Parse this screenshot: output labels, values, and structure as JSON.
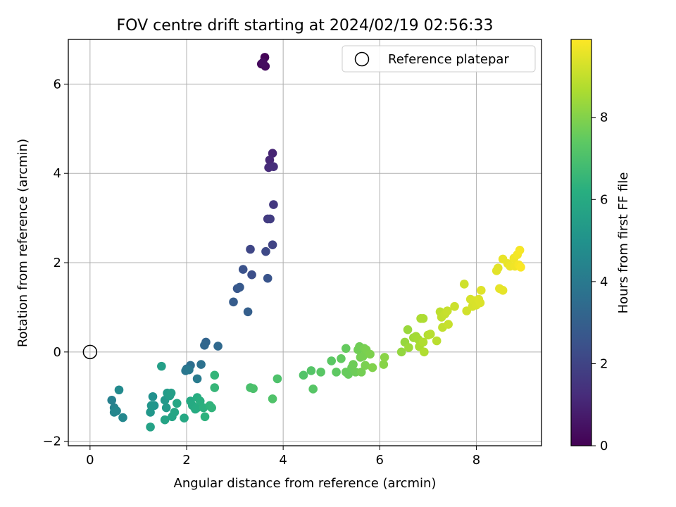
{
  "chart_data": {
    "type": "scatter",
    "title": "FOV centre drift starting at 2024/02/19 02:56:33",
    "xlabel": "Angular distance from reference (arcmin)",
    "ylabel": "Rotation from reference (arcmin)",
    "xlim": [
      -0.45,
      9.35
    ],
    "ylim": [
      -2.1,
      7.0
    ],
    "xticks": [
      0,
      2,
      4,
      6,
      8
    ],
    "yticks": [
      -2,
      0,
      2,
      4,
      6
    ],
    "grid": true,
    "legend": {
      "placement": "top-right",
      "entries": [
        "Reference platepar"
      ]
    },
    "reference_point": {
      "x": 0,
      "y": 0,
      "label": "Reference platepar"
    },
    "colorbar": {
      "label": "Hours from first FF file",
      "range": [
        0,
        9.9
      ],
      "ticks": [
        0,
        2,
        4,
        6,
        8
      ],
      "colormap": "viridis"
    },
    "points": [
      [
        3.62,
        6.6,
        0.1
      ],
      [
        3.55,
        6.45,
        0.2
      ],
      [
        3.63,
        6.4,
        0.3
      ],
      [
        3.58,
        6.48,
        0.35
      ],
      [
        3.78,
        4.45,
        1.0
      ],
      [
        3.72,
        4.3,
        1.1
      ],
      [
        3.7,
        4.13,
        1.2
      ],
      [
        3.8,
        4.15,
        1.3
      ],
      [
        3.8,
        3.3,
        1.6
      ],
      [
        3.68,
        2.98,
        1.7
      ],
      [
        3.73,
        2.98,
        1.8
      ],
      [
        3.78,
        2.4,
        2.0
      ],
      [
        3.32,
        2.3,
        2.1
      ],
      [
        3.64,
        2.25,
        2.2
      ],
      [
        3.35,
        1.73,
        2.4
      ],
      [
        3.17,
        1.85,
        2.5
      ],
      [
        3.68,
        1.65,
        2.6
      ],
      [
        3.05,
        1.42,
        2.7
      ],
      [
        3.1,
        1.45,
        2.8
      ],
      [
        2.97,
        1.12,
        2.9
      ],
      [
        3.27,
        0.9,
        3.0
      ],
      [
        2.4,
        0.22,
        3.2
      ],
      [
        2.37,
        0.15,
        3.3
      ],
      [
        2.65,
        0.13,
        3.4
      ],
      [
        2.08,
        -0.3,
        3.6
      ],
      [
        2.3,
        -0.28,
        3.7
      ],
      [
        2.0,
        -0.38,
        3.8
      ],
      [
        1.98,
        -0.42,
        3.9
      ],
      [
        2.05,
        -0.4,
        4.0
      ],
      [
        2.22,
        -0.6,
        4.1
      ],
      [
        0.45,
        -1.08,
        4.3
      ],
      [
        0.5,
        -1.25,
        4.4
      ],
      [
        0.55,
        -1.32,
        4.5
      ],
      [
        0.5,
        -1.35,
        4.55
      ],
      [
        0.68,
        -1.47,
        4.6
      ],
      [
        0.6,
        -0.85,
        4.7
      ],
      [
        1.3,
        -1.0,
        5.0
      ],
      [
        1.33,
        -1.2,
        5.1
      ],
      [
        1.27,
        -1.2,
        5.2
      ],
      [
        1.25,
        -1.35,
        5.25
      ],
      [
        1.55,
        -1.08,
        5.3
      ],
      [
        1.58,
        -1.25,
        5.35
      ],
      [
        1.6,
        -0.92,
        5.4
      ],
      [
        1.62,
        -0.95,
        5.45
      ],
      [
        1.65,
        -0.98,
        5.5
      ],
      [
        1.68,
        -0.92,
        5.55
      ],
      [
        1.48,
        -0.32,
        5.6
      ],
      [
        1.25,
        -1.68,
        5.7
      ],
      [
        1.55,
        -1.52,
        5.75
      ],
      [
        1.7,
        -1.45,
        5.8
      ],
      [
        1.75,
        -1.35,
        5.85
      ],
      [
        1.8,
        -1.15,
        5.9
      ],
      [
        1.95,
        -1.48,
        5.95
      ],
      [
        2.08,
        -1.1,
        6.0
      ],
      [
        2.12,
        -1.2,
        6.05
      ],
      [
        2.18,
        -1.28,
        6.1
      ],
      [
        2.22,
        -1.25,
        6.15
      ],
      [
        2.22,
        -1.02,
        6.2
      ],
      [
        2.28,
        -1.1,
        6.25
      ],
      [
        2.35,
        -1.25,
        6.3
      ],
      [
        2.38,
        -1.45,
        6.35
      ],
      [
        2.48,
        -1.2,
        6.4
      ],
      [
        2.52,
        -1.25,
        6.45
      ],
      [
        2.58,
        -0.52,
        6.5
      ],
      [
        2.58,
        -0.8,
        6.55
      ],
      [
        3.32,
        -0.8,
        7.0
      ],
      [
        3.38,
        -0.82,
        7.05
      ],
      [
        3.88,
        -0.6,
        7.1
      ],
      [
        3.78,
        -1.05,
        7.15
      ],
      [
        4.42,
        -0.52,
        7.2
      ],
      [
        4.58,
        -0.42,
        7.25
      ],
      [
        4.62,
        -0.83,
        7.3
      ],
      [
        4.78,
        -0.45,
        7.35
      ],
      [
        5.0,
        -0.2,
        7.4
      ],
      [
        5.1,
        -0.45,
        7.45
      ],
      [
        5.2,
        -0.15,
        7.5
      ],
      [
        5.3,
        0.08,
        7.55
      ],
      [
        5.3,
        -0.45,
        7.6
      ],
      [
        5.35,
        -0.5,
        7.6
      ],
      [
        5.42,
        -0.35,
        7.65
      ],
      [
        5.45,
        -0.28,
        7.7
      ],
      [
        5.5,
        -0.45,
        7.7
      ],
      [
        5.55,
        0.05,
        7.75
      ],
      [
        5.58,
        0.12,
        7.75
      ],
      [
        5.6,
        -0.12,
        7.8
      ],
      [
        5.62,
        -0.45,
        7.8
      ],
      [
        5.65,
        -0.1,
        7.85
      ],
      [
        5.68,
        0.08,
        7.85
      ],
      [
        5.7,
        -0.3,
        7.9
      ],
      [
        5.72,
        0.05,
        7.9
      ],
      [
        5.8,
        -0.05,
        7.95
      ],
      [
        5.85,
        -0.35,
        8.0
      ],
      [
        6.08,
        -0.28,
        8.1
      ],
      [
        6.1,
        -0.12,
        8.15
      ],
      [
        6.45,
        0.0,
        8.3
      ],
      [
        6.52,
        0.22,
        8.35
      ],
      [
        6.58,
        0.5,
        8.4
      ],
      [
        6.6,
        0.1,
        8.45
      ],
      [
        6.7,
        0.32,
        8.5
      ],
      [
        6.75,
        0.35,
        8.55
      ],
      [
        6.8,
        0.28,
        8.6
      ],
      [
        6.82,
        0.12,
        8.65
      ],
      [
        6.85,
        0.75,
        8.7
      ],
      [
        6.9,
        0.75,
        8.7
      ],
      [
        6.9,
        0.22,
        8.75
      ],
      [
        6.92,
        0.0,
        8.75
      ],
      [
        7.0,
        0.38,
        8.8
      ],
      [
        7.05,
        0.4,
        8.85
      ],
      [
        7.18,
        0.25,
        8.9
      ],
      [
        7.25,
        0.9,
        8.95
      ],
      [
        7.28,
        0.78,
        9.0
      ],
      [
        7.3,
        0.55,
        9.0
      ],
      [
        7.35,
        0.85,
        9.05
      ],
      [
        7.4,
        0.92,
        9.1
      ],
      [
        7.42,
        0.62,
        9.1
      ],
      [
        7.55,
        1.02,
        9.15
      ],
      [
        7.75,
        1.52,
        9.2
      ],
      [
        7.8,
        0.92,
        9.25
      ],
      [
        7.88,
        1.18,
        9.3
      ],
      [
        7.92,
        1.02,
        9.3
      ],
      [
        7.95,
        1.15,
        9.35
      ],
      [
        8.0,
        1.05,
        9.35
      ],
      [
        8.05,
        1.18,
        9.4
      ],
      [
        8.08,
        1.1,
        9.4
      ],
      [
        8.1,
        1.38,
        9.45
      ],
      [
        8.42,
        1.82,
        9.5
      ],
      [
        8.45,
        1.88,
        9.5
      ],
      [
        8.48,
        1.42,
        9.55
      ],
      [
        8.55,
        1.38,
        9.55
      ],
      [
        8.55,
        2.08,
        9.6
      ],
      [
        8.65,
        1.98,
        9.6
      ],
      [
        8.7,
        1.92,
        9.65
      ],
      [
        8.78,
        2.1,
        9.7
      ],
      [
        8.8,
        1.92,
        9.7
      ],
      [
        8.85,
        2.18,
        9.75
      ],
      [
        8.88,
        1.95,
        9.8
      ],
      [
        8.9,
        2.28,
        9.8
      ],
      [
        8.92,
        1.9,
        9.85
      ]
    ]
  }
}
